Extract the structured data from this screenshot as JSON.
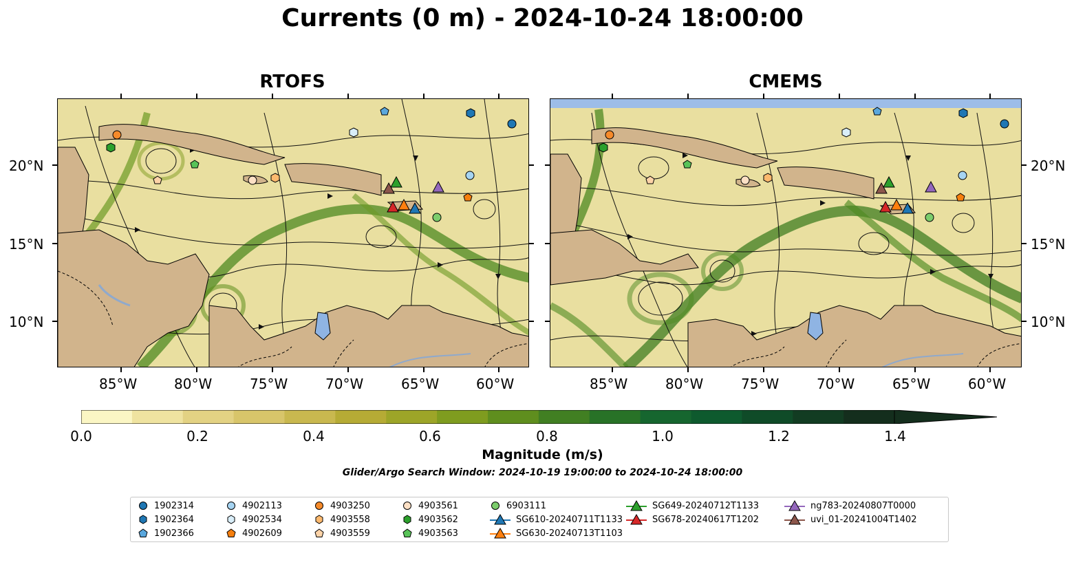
{
  "title": "Currents (0 m) - 2024-10-24 18:00:00",
  "panels": [
    {
      "id": "rtofs",
      "title": "RTOFS"
    },
    {
      "id": "cmems",
      "title": "CMEMS"
    }
  ],
  "axes": {
    "x_ticks": [
      "85°W",
      "80°W",
      "75°W",
      "70°W",
      "65°W",
      "60°W"
    ],
    "y_ticks": [
      "20°N",
      "15°N",
      "10°N"
    ]
  },
  "colorbar": {
    "label": "Magnitude (m/s)",
    "ticks": [
      "0.0",
      "0.2",
      "0.4",
      "0.6",
      "0.8",
      "1.0",
      "1.2",
      "1.4"
    ],
    "colors": [
      "#fbf6c4",
      "#efe3a0",
      "#e3d283",
      "#d8c56a",
      "#c9b84f",
      "#b6ab35",
      "#9da528",
      "#7f9c1f",
      "#5f8e1e",
      "#417f22",
      "#287227",
      "#16662f",
      "#0e5a2e",
      "#0f4b28",
      "#123c22",
      "#142e1d"
    ],
    "extend": "max"
  },
  "search_window": "Glider/Argo Search Window: 2024-10-19 19:00:00 to 2024-10-24 18:00:00",
  "legend": [
    {
      "label": "1902314",
      "marker": "circle",
      "color": "#1f77b4"
    },
    {
      "label": "1902364",
      "marker": "hexagon",
      "color": "#1f77b4"
    },
    {
      "label": "1902366",
      "marker": "pentagon",
      "color": "#5aa7dd"
    },
    {
      "label": "4902113",
      "marker": "circle",
      "color": "#a6d4f2"
    },
    {
      "label": "4902534",
      "marker": "hexagon",
      "color": "#d9eef9"
    },
    {
      "label": "4902609",
      "marker": "pentagon",
      "color": "#f57f0e"
    },
    {
      "label": "4903250",
      "marker": "circle",
      "color": "#f58a2a"
    },
    {
      "label": "4903558",
      "marker": "hexagon",
      "color": "#fdb96e"
    },
    {
      "label": "4903559",
      "marker": "pentagon",
      "color": "#fdd3a8"
    },
    {
      "label": "4903561",
      "marker": "circle",
      "color": "#fde0c5"
    },
    {
      "label": "4903562",
      "marker": "hexagon",
      "color": "#2ca02c"
    },
    {
      "label": "4903563",
      "marker": "pentagon",
      "color": "#58c358"
    },
    {
      "label": "6903111",
      "marker": "circle",
      "color": "#7ccd6c"
    },
    {
      "label": "SG610-20240711T1133",
      "marker": "triangle-line",
      "color": "#1f77b4"
    },
    {
      "label": "SG630-20240713T1103",
      "marker": "triangle-line",
      "color": "#ff7f0e"
    },
    {
      "label": "SG649-20240712T1133",
      "marker": "triangle-line",
      "color": "#2ca02c"
    },
    {
      "label": "SG678-20240617T1202",
      "marker": "triangle-line",
      "color": "#d62728"
    },
    {
      "label": "ng783-20240807T0000",
      "marker": "triangle-line",
      "color": "#9467bd"
    },
    {
      "label": "uvi_01-20241004T1402",
      "marker": "triangle-line",
      "color": "#8c564b"
    }
  ],
  "map_colors": {
    "land": "#d1b48c",
    "lake": "#8fb4e3",
    "ocean_low": "#efe3a0",
    "ocean_high": "#2f7f2a",
    "nodata": "#9dbde8"
  }
}
